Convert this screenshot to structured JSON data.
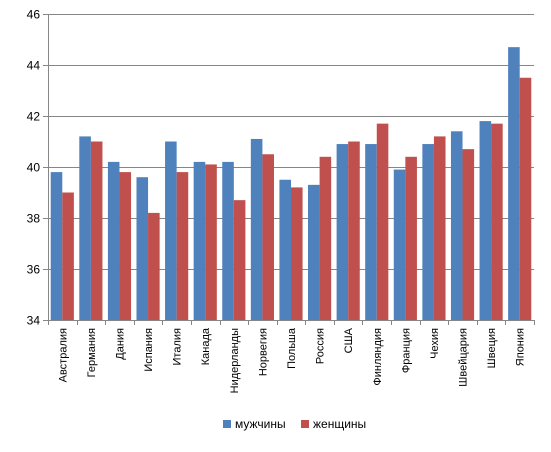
{
  "chart_data": {
    "type": "bar",
    "categories": [
      "Австралия",
      "Германия",
      "Дания",
      "Испания",
      "Италия",
      "Канада",
      "Нидерланды",
      "Норвегия",
      "Польша",
      "Россия",
      "США",
      "Финляндия",
      "Франция",
      "Чехия",
      "Швейцария",
      "Швеция",
      "Япония"
    ],
    "series": [
      {
        "name": "мужчины",
        "color": "#4F81BD",
        "values": [
          39.8,
          41.2,
          40.2,
          39.6,
          41.0,
          40.2,
          40.2,
          41.1,
          39.5,
          39.3,
          40.9,
          40.9,
          39.9,
          40.9,
          41.4,
          41.8,
          44.7
        ]
      },
      {
        "name": "женщины",
        "color": "#C0504D",
        "values": [
          39.0,
          41.0,
          39.8,
          38.2,
          39.8,
          40.1,
          38.7,
          40.5,
          39.2,
          40.4,
          41.0,
          41.7,
          40.4,
          41.2,
          40.7,
          41.7,
          43.5
        ]
      }
    ],
    "ylim": [
      34,
      46
    ],
    "yticks": [
      34,
      36,
      38,
      40,
      42,
      44,
      46
    ],
    "grid": true,
    "legend_position": "bottom",
    "title": "",
    "xlabel": "",
    "ylabel": ""
  }
}
